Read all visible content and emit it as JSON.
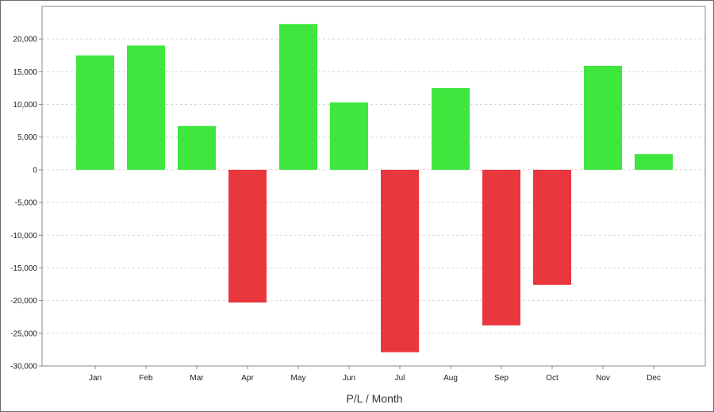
{
  "chart_data": {
    "type": "bar",
    "title": "",
    "xlabel": "P/L / Month",
    "ylabel": "",
    "categories": [
      "Jan",
      "Feb",
      "Mar",
      "Apr",
      "May",
      "Jun",
      "Jul",
      "Aug",
      "Sep",
      "Oct",
      "Nov",
      "Dec"
    ],
    "values": [
      17500,
      19000,
      6700,
      -20300,
      22300,
      10300,
      -27900,
      12500,
      -23800,
      -17600,
      15900,
      2400
    ],
    "ylim": [
      -30000,
      25000
    ],
    "yticks": [
      -30000,
      -25000,
      -20000,
      -15000,
      -10000,
      -5000,
      0,
      5000,
      10000,
      15000,
      20000
    ],
    "ytick_labels": [
      "-30,000",
      "-25,000",
      "-20,000",
      "-15,000",
      "-10,000",
      "-5,000",
      "0",
      "5,000",
      "10,000",
      "15,000",
      "20,000"
    ],
    "grid": true,
    "legend": "none",
    "colors": {
      "positive": "#3ee63e",
      "negative": "#e8383d",
      "grid": "#d6d6d6",
      "axis": "#888888"
    }
  }
}
